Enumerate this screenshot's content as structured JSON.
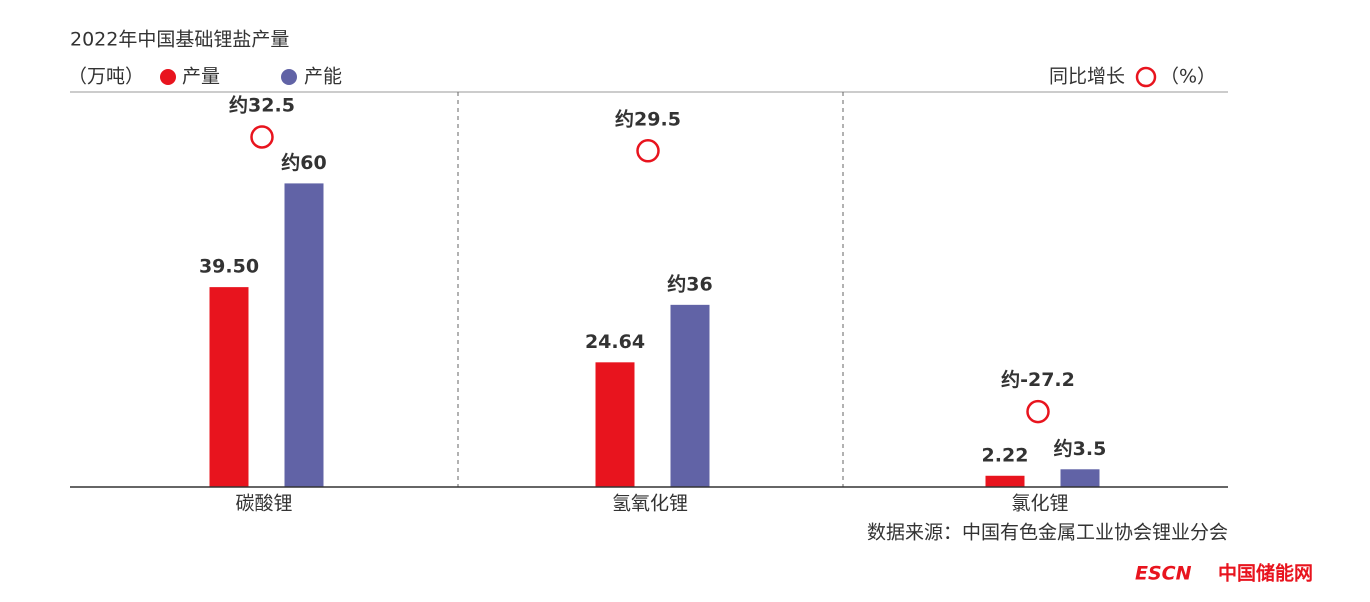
{
  "chart_data": {
    "type": "bar",
    "title": "2022年中国基础锂盐产量",
    "unit_label": "（万吨）",
    "categories": [
      "碳酸锂",
      "氢氧化锂",
      "氯化锂"
    ],
    "series": [
      {
        "name": "产量",
        "color": "#e8141e",
        "values": [
          39.5,
          24.64,
          2.22
        ],
        "value_labels": [
          "39.50",
          "24.64",
          "2.22"
        ]
      },
      {
        "name": "产能",
        "color": "#6163a6",
        "values": [
          60,
          36,
          3.5
        ],
        "value_labels": [
          "约60",
          "约36",
          "约3.5"
        ]
      },
      {
        "name": "同比增长",
        "unit_label": "（%）",
        "color": "#e8141e",
        "marker": "circle-open",
        "values": [
          32.5,
          29.5,
          -27.2
        ],
        "value_labels": [
          "约32.5",
          "约29.5",
          "约-27.2"
        ]
      }
    ],
    "source": "数据来源：中国有色金属工业协会锂业分会"
  },
  "logo": {
    "en": "ESCN",
    "cn": "中国储能网"
  }
}
